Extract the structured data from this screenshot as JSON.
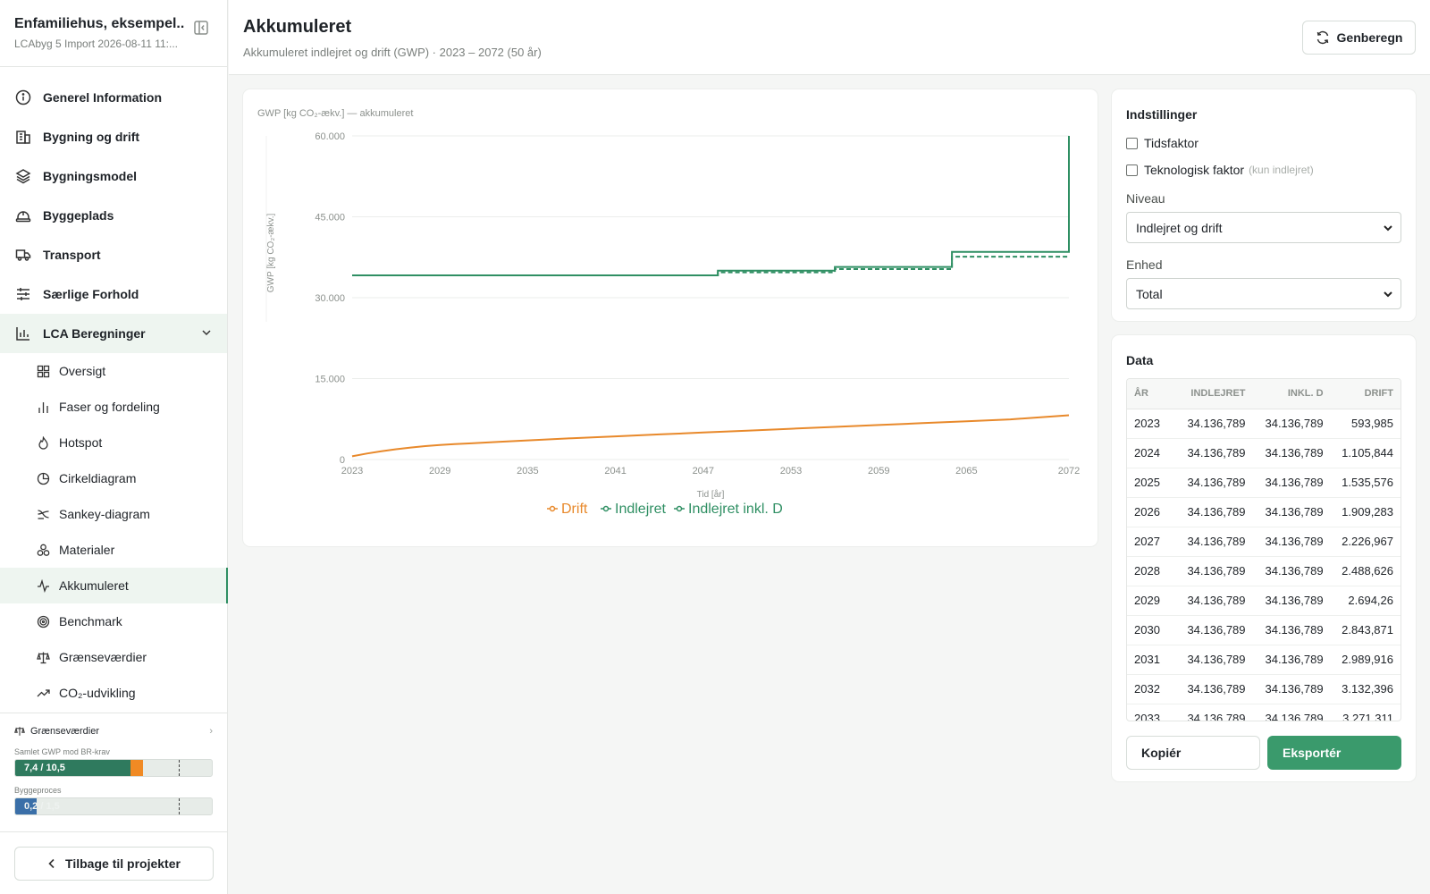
{
  "project": {
    "title": "Enfamiliehus, eksempel...",
    "subtitle": "LCAbyg 5 Import 2026-08-11 11:..."
  },
  "nav": {
    "items": [
      {
        "label": "Generel Information",
        "icon": "info-icon"
      },
      {
        "label": "Bygning og drift",
        "icon": "building-icon"
      },
      {
        "label": "Bygningsmodel",
        "icon": "layers-icon"
      },
      {
        "label": "Byggeplads",
        "icon": "hardhat-icon"
      },
      {
        "label": "Transport",
        "icon": "truck-icon"
      },
      {
        "label": "Særlige Forhold",
        "icon": "sliders-icon"
      }
    ],
    "group": {
      "label": "LCA Beregninger",
      "icon": "bar-chart-icon"
    },
    "sub_items": [
      {
        "label": "Oversigt",
        "icon": "grid-icon"
      },
      {
        "label": "Faser og fordeling",
        "icon": "bars-icon"
      },
      {
        "label": "Hotspot",
        "icon": "flame-icon"
      },
      {
        "label": "Cirkeldiagram",
        "icon": "pie-icon"
      },
      {
        "label": "Sankey-diagram",
        "icon": "sankey-icon"
      },
      {
        "label": "Materialer",
        "icon": "materials-icon"
      },
      {
        "label": "Akkumuleret",
        "icon": "activity-icon"
      },
      {
        "label": "Benchmark",
        "icon": "target-icon"
      },
      {
        "label": "Grænseværdier",
        "icon": "scale-icon"
      },
      {
        "label": "CO₂-udvikling",
        "icon": "trend-icon"
      }
    ]
  },
  "limits": {
    "title": "Grænseværdier",
    "bars": [
      {
        "label": "Samlet GWP mod BR-krav",
        "text": "7,4 / 10,5",
        "value": 7.4,
        "max": 10.5,
        "orange": 0.8
      },
      {
        "label": "Byggeproces",
        "text": "0,2 / 1,5",
        "value": 0.2,
        "max": 1.5
      }
    ]
  },
  "back_label": "Tilbage til projekter",
  "header": {
    "title": "Akkumuleret",
    "subtitle": "Akkumuleret indlejret og drift (GWP) · 2023 – 2072 (50 år)",
    "recalc_label": "Genberegn"
  },
  "colors": {
    "accent": "#2f8f63",
    "drift": "#e8892b",
    "indlejret": "#2f8f63"
  },
  "chart_data": {
    "type": "line",
    "title": "GWP [kg CO₂-ækv.] — akkumuleret",
    "ylabel": "GWP [kg CO₂-ækv.]",
    "xlabel": "Tid [år]",
    "ylim": [
      0,
      60000
    ],
    "yticks": [
      "0",
      "15.000",
      "30.000",
      "45.000",
      "60.000"
    ],
    "yticks_values": [
      0,
      15000,
      30000,
      45000,
      60000
    ],
    "xticks": [
      "2023",
      "2029",
      "2035",
      "2041",
      "2047",
      "2053",
      "2059",
      "2065",
      "2072"
    ],
    "xlim": [
      2023,
      2072
    ],
    "grid": true,
    "legend_position": "bottom",
    "series": [
      {
        "name": "Drift",
        "color": "#e8892b",
        "dashed": false,
        "x": [
          2023,
          2024,
          2025,
          2026,
          2027,
          2028,
          2029,
          2030,
          2031,
          2032,
          2033,
          2035,
          2038,
          2041,
          2044,
          2047,
          2050,
          2053,
          2056,
          2059,
          2062,
          2065,
          2068,
          2072
        ],
        "y": [
          594,
          1106,
          1536,
          1909,
          2227,
          2489,
          2694,
          2844,
          2990,
          3132,
          3271,
          3550,
          3950,
          4300,
          4650,
          5000,
          5350,
          5700,
          6050,
          6400,
          6750,
          7100,
          7450,
          8200
        ]
      },
      {
        "name": "Indlejret",
        "color": "#2f8f63",
        "dashed": false,
        "step": true,
        "x": [
          2023,
          2048,
          2048,
          2056,
          2056,
          2064,
          2064,
          2072,
          2072
        ],
        "y": [
          34137,
          34137,
          35000,
          35000,
          35700,
          35700,
          38500,
          38500,
          60000
        ]
      },
      {
        "name": "Indlejret inkl. D",
        "color": "#2f8f63",
        "dashed": true,
        "step": true,
        "x": [
          2023,
          2048,
          2048,
          2056,
          2056,
          2064,
          2064,
          2072
        ],
        "y": [
          34137,
          34137,
          34700,
          34700,
          35300,
          35300,
          37600,
          37600
        ]
      }
    ]
  },
  "settings": {
    "title": "Indstillinger",
    "tidsfaktor": "Tidsfaktor",
    "teknologisk": "Teknologisk faktor",
    "teknologisk_note": "(kun indlejret)",
    "niveau_label": "Niveau",
    "niveau_value": "Indlejret og drift",
    "enhed_label": "Enhed",
    "enhed_value": "Total"
  },
  "data": {
    "title": "Data",
    "columns": [
      "ÅR",
      "INDLEJRET",
      "INKL. D",
      "DRIFT"
    ],
    "rows": [
      [
        "2023",
        "34.136,789",
        "34.136,789",
        "593,985"
      ],
      [
        "2024",
        "34.136,789",
        "34.136,789",
        "1.105,844"
      ],
      [
        "2025",
        "34.136,789",
        "34.136,789",
        "1.535,576"
      ],
      [
        "2026",
        "34.136,789",
        "34.136,789",
        "1.909,283"
      ],
      [
        "2027",
        "34.136,789",
        "34.136,789",
        "2.226,967"
      ],
      [
        "2028",
        "34.136,789",
        "34.136,789",
        "2.488,626"
      ],
      [
        "2029",
        "34.136,789",
        "34.136,789",
        "2.694,26"
      ],
      [
        "2030",
        "34.136,789",
        "34.136,789",
        "2.843,871"
      ],
      [
        "2031",
        "34.136,789",
        "34.136,789",
        "2.989,916"
      ],
      [
        "2032",
        "34.136,789",
        "34.136,789",
        "3.132,396"
      ],
      [
        "2033",
        "34.136,789",
        "34.136,789",
        "3.271,311"
      ]
    ],
    "copy_label": "Kopiér",
    "export_label": "Eksportér"
  }
}
